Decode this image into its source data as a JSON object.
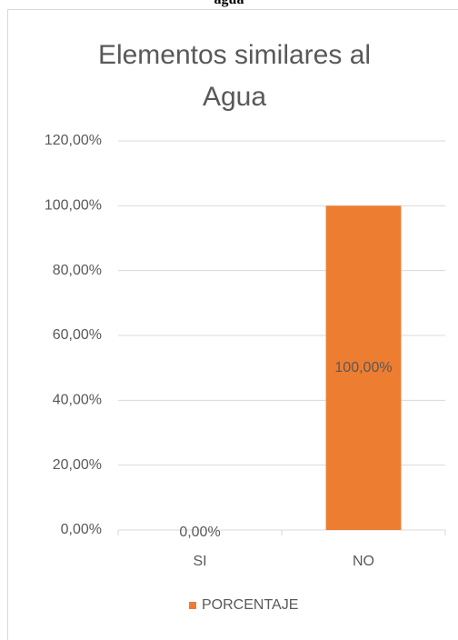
{
  "caption": "agua",
  "chart_data": {
    "type": "bar",
    "title": "Elementos similares al Agua",
    "categories": [
      "SI",
      "NO"
    ],
    "series": [
      {
        "name": "PORCENTAJE",
        "color": "#ed7d31",
        "values": [
          0,
          100
        ],
        "value_labels": [
          "0,00%",
          "100,00%"
        ]
      }
    ],
    "ylim": [
      0,
      120
    ],
    "yticks": [
      {
        "value": 0,
        "label": "0,00%"
      },
      {
        "value": 20,
        "label": "20,00%"
      },
      {
        "value": 40,
        "label": "40,00%"
      },
      {
        "value": 60,
        "label": "60,00%"
      },
      {
        "value": 80,
        "label": "80,00%"
      },
      {
        "value": 100,
        "label": "100,00%"
      },
      {
        "value": 120,
        "label": "120,00%"
      }
    ],
    "grid": true,
    "legend": "bottom"
  }
}
